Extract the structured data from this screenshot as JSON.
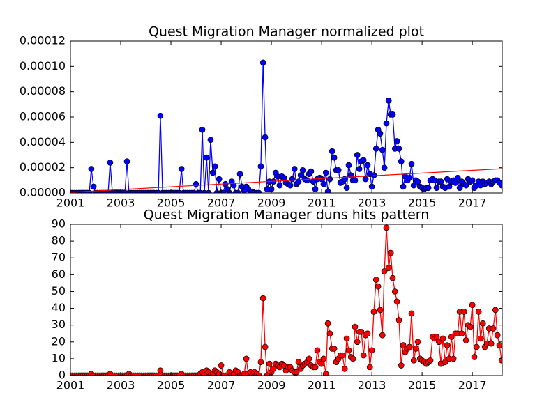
{
  "chart_data": [
    {
      "type": "line",
      "title": "Quest Migration Manager normalized plot",
      "x": [
        2001.0,
        2001.08,
        2001.17,
        2001.25,
        2001.33,
        2001.42,
        2001.5,
        2001.58,
        2001.67,
        2001.75,
        2001.83,
        2001.92,
        2002.0,
        2002.08,
        2002.17,
        2002.25,
        2002.33,
        2002.42,
        2002.5,
        2002.58,
        2002.67,
        2002.75,
        2002.83,
        2002.92,
        2003.0,
        2003.08,
        2003.17,
        2003.25,
        2003.33,
        2003.42,
        2003.5,
        2003.58,
        2003.67,
        2003.75,
        2003.83,
        2003.92,
        2004.0,
        2004.08,
        2004.17,
        2004.25,
        2004.33,
        2004.42,
        2004.5,
        2004.58,
        2004.67,
        2004.75,
        2004.83,
        2004.92,
        2005.0,
        2005.08,
        2005.17,
        2005.25,
        2005.33,
        2005.42,
        2005.5,
        2005.58,
        2005.67,
        2005.75,
        2005.83,
        2005.92,
        2006.0,
        2006.08,
        2006.17,
        2006.25,
        2006.33,
        2006.42,
        2006.5,
        2006.58,
        2006.67,
        2006.75,
        2006.83,
        2006.92,
        2007.0,
        2007.08,
        2007.17,
        2007.25,
        2007.33,
        2007.42,
        2007.5,
        2007.58,
        2007.67,
        2007.75,
        2007.83,
        2007.92,
        2008.0,
        2008.08,
        2008.17,
        2008.25,
        2008.33,
        2008.42,
        2008.5,
        2008.58,
        2008.67,
        2008.75,
        2008.83,
        2008.92,
        2009.0,
        2009.08,
        2009.17,
        2009.25,
        2009.33,
        2009.42,
        2009.5,
        2009.58,
        2009.67,
        2009.75,
        2009.83,
        2009.92,
        2010.0,
        2010.08,
        2010.17,
        2010.25,
        2010.33,
        2010.42,
        2010.5,
        2010.58,
        2010.67,
        2010.75,
        2010.83,
        2010.92,
        2011.0,
        2011.08,
        2011.17,
        2011.25,
        2011.33,
        2011.42,
        2011.5,
        2011.58,
        2011.67,
        2011.75,
        2011.83,
        2011.92,
        2012.0,
        2012.08,
        2012.17,
        2012.25,
        2012.33,
        2012.42,
        2012.5,
        2012.58,
        2012.67,
        2012.75,
        2012.83,
        2012.92,
        2013.0,
        2013.08,
        2013.17,
        2013.25,
        2013.33,
        2013.42,
        2013.5,
        2013.58,
        2013.67,
        2013.75,
        2013.83,
        2013.92,
        2014.0,
        2014.08,
        2014.17,
        2014.25,
        2014.33,
        2014.42,
        2014.5,
        2014.58,
        2014.67,
        2014.75,
        2014.83,
        2014.92,
        2015.0,
        2015.08,
        2015.17,
        2015.25,
        2015.33,
        2015.42,
        2015.5,
        2015.58,
        2015.67,
        2015.75,
        2015.83,
        2015.92,
        2016.0,
        2016.08,
        2016.17,
        2016.25,
        2016.33,
        2016.42,
        2016.5,
        2016.58,
        2016.67,
        2016.75,
        2016.83,
        2016.92,
        2017.0,
        2017.08,
        2017.17,
        2017.25,
        2017.33,
        2017.42,
        2017.5,
        2017.58,
        2017.67,
        2017.75,
        2017.83,
        2017.92,
        2018.0,
        2018.08,
        2018.17
      ],
      "series": [
        {
          "color": "#0000ff",
          "values": [
            0,
            0,
            0,
            0,
            0,
            0,
            0,
            0,
            0,
            0,
            1.9e-05,
            5e-06,
            0,
            0,
            0,
            0,
            0,
            0,
            0,
            2.4e-05,
            0,
            0,
            0,
            0,
            0,
            0,
            0,
            2.5e-05,
            0,
            0,
            0,
            0,
            0,
            0,
            0,
            0,
            0,
            0,
            0,
            0,
            0,
            0,
            0,
            6.1e-05,
            0,
            0,
            0,
            0,
            0,
            0,
            0,
            0,
            0,
            1.9e-05,
            0,
            0,
            0,
            0,
            0,
            0,
            7e-06,
            0,
            0,
            5e-05,
            0,
            2.8e-05,
            0,
            4.2e-05,
            1.6e-05,
            2.1e-05,
            0,
            1.1e-05,
            0,
            0,
            7e-06,
            3e-06,
            0,
            9e-06,
            6e-06,
            0,
            0,
            1.5e-05,
            5e-06,
            2e-06,
            5e-06,
            3e-06,
            0,
            1e-06,
            0,
            0,
            0,
            2.1e-05,
            0.000103,
            4.4e-05,
            3e-06,
            9e-06,
            3e-06,
            9e-06,
            1.6e-05,
            1.3e-05,
            6e-06,
            1.3e-05,
            1.2e-05,
            8e-06,
            7e-06,
            6e-06,
            1.1e-05,
            1.9e-05,
            7e-06,
            9e-06,
            1.4e-05,
            1.8e-05,
            1.1e-05,
            1e-05,
            1.5e-05,
            1.7e-05,
            9e-06,
            3e-06,
            1.1e-05,
            1.2e-05,
            1.1e-05,
            7e-06,
            1.6e-05,
            1e-06,
            1.1e-05,
            3.3e-05,
            2.8e-05,
            1.8e-05,
            1.8e-05,
            8e-06,
            9e-06,
            1.1e-05,
            4e-06,
            2.2e-05,
            1.4e-05,
            1e-05,
            1e-05,
            3e-05,
            1.9e-05,
            2.5e-05,
            2.6e-05,
            1.1e-05,
            2.2e-05,
            1.5e-05,
            5e-06,
            1.4e-05,
            3.5e-05,
            5e-05,
            4.7e-05,
            3.4e-05,
            2e-05,
            5.5e-05,
            7.3e-05,
            6.2e-05,
            6.2e-05,
            3.5e-05,
            4.1e-05,
            3.5e-05,
            2.5e-05,
            5e-06,
            1.3e-05,
            1e-05,
            1.2e-05,
            2.3e-05,
            6e-06,
            1e-05,
            9e-06,
            5e-06,
            4e-06,
            3e-06,
            4e-06,
            4e-06,
            1e-05,
            1.1e-05,
            1e-05,
            4e-06,
            9e-06,
            9e-06,
            5e-06,
            4e-06,
            1.1e-05,
            5e-06,
            9e-06,
            1e-05,
            8e-06,
            1.2e-05,
            4e-06,
            9e-06,
            7e-06,
            6e-06,
            1.1e-05,
            9e-06,
            1e-05,
            4e-06,
            6e-06,
            9e-06,
            6e-06,
            9e-06,
            7e-06,
            8e-06,
            9e-06,
            7e-06,
            9e-06,
            1e-05,
            1e-05,
            8e-06,
            6e-06
          ]
        }
      ],
      "trend": {
        "color": "#ff0000",
        "x": [
          2001.0,
          2018.19
        ],
        "values": [
          5e-07,
          1.92e-05
        ]
      },
      "xlim": [
        2001.0,
        2018.19
      ],
      "xticks": [
        2001,
        2003,
        2005,
        2007,
        2009,
        2011,
        2013,
        2015,
        2017
      ],
      "ylim": [
        0,
        0.00012
      ],
      "yticks": [
        {
          "value": 0,
          "label": "0.00000"
        },
        {
          "value": 2e-05,
          "label": "0.00002"
        },
        {
          "value": 4e-05,
          "label": "0.00004"
        },
        {
          "value": 6e-05,
          "label": "0.00006"
        },
        {
          "value": 8e-05,
          "label": "0.00008"
        },
        {
          "value": 0.0001,
          "label": "0.00010"
        },
        {
          "value": 0.00012,
          "label": "0.00012"
        }
      ]
    },
    {
      "type": "line",
      "title": "Quest Migration Manager duns hits pattern",
      "x": [
        2001.0,
        2001.08,
        2001.17,
        2001.25,
        2001.33,
        2001.42,
        2001.5,
        2001.58,
        2001.67,
        2001.75,
        2001.83,
        2001.92,
        2002.0,
        2002.08,
        2002.17,
        2002.25,
        2002.33,
        2002.42,
        2002.5,
        2002.58,
        2002.67,
        2002.75,
        2002.83,
        2002.92,
        2003.0,
        2003.08,
        2003.17,
        2003.25,
        2003.33,
        2003.42,
        2003.5,
        2003.58,
        2003.67,
        2003.75,
        2003.83,
        2003.92,
        2004.0,
        2004.08,
        2004.17,
        2004.25,
        2004.33,
        2004.42,
        2004.5,
        2004.58,
        2004.67,
        2004.75,
        2004.83,
        2004.92,
        2005.0,
        2005.08,
        2005.17,
        2005.25,
        2005.33,
        2005.42,
        2005.5,
        2005.58,
        2005.67,
        2005.75,
        2005.83,
        2005.92,
        2006.0,
        2006.08,
        2006.17,
        2006.25,
        2006.33,
        2006.42,
        2006.5,
        2006.58,
        2006.67,
        2006.75,
        2006.83,
        2006.92,
        2007.0,
        2007.08,
        2007.17,
        2007.25,
        2007.33,
        2007.42,
        2007.5,
        2007.58,
        2007.67,
        2007.75,
        2007.83,
        2007.92,
        2008.0,
        2008.08,
        2008.17,
        2008.25,
        2008.33,
        2008.42,
        2008.5,
        2008.58,
        2008.67,
        2008.75,
        2008.83,
        2008.92,
        2009.0,
        2009.08,
        2009.17,
        2009.25,
        2009.33,
        2009.42,
        2009.5,
        2009.58,
        2009.67,
        2009.75,
        2009.83,
        2009.92,
        2010.0,
        2010.08,
        2010.17,
        2010.25,
        2010.33,
        2010.42,
        2010.5,
        2010.58,
        2010.67,
        2010.75,
        2010.83,
        2010.92,
        2011.0,
        2011.08,
        2011.17,
        2011.25,
        2011.33,
        2011.42,
        2011.5,
        2011.58,
        2011.67,
        2011.75,
        2011.83,
        2011.92,
        2012.0,
        2012.08,
        2012.17,
        2012.25,
        2012.33,
        2012.42,
        2012.5,
        2012.58,
        2012.67,
        2012.75,
        2012.83,
        2012.92,
        2013.0,
        2013.08,
        2013.17,
        2013.25,
        2013.33,
        2013.42,
        2013.5,
        2013.58,
        2013.67,
        2013.75,
        2013.83,
        2013.92,
        2014.0,
        2014.08,
        2014.17,
        2014.25,
        2014.33,
        2014.42,
        2014.5,
        2014.58,
        2014.67,
        2014.75,
        2014.83,
        2014.92,
        2015.0,
        2015.08,
        2015.17,
        2015.25,
        2015.33,
        2015.42,
        2015.5,
        2015.58,
        2015.67,
        2015.75,
        2015.83,
        2015.92,
        2016.0,
        2016.08,
        2016.17,
        2016.25,
        2016.33,
        2016.42,
        2016.5,
        2016.58,
        2016.67,
        2016.75,
        2016.83,
        2016.92,
        2017.0,
        2017.08,
        2017.17,
        2017.25,
        2017.33,
        2017.42,
        2017.5,
        2017.58,
        2017.67,
        2017.75,
        2017.83,
        2017.92,
        2018.0,
        2018.08,
        2018.17
      ],
      "series": [
        {
          "color": "#ff0000",
          "values": [
            0,
            0,
            0,
            0,
            0,
            0,
            0,
            0,
            0,
            0,
            1,
            0,
            0,
            0,
            0,
            0,
            0,
            0,
            0,
            1,
            0,
            0,
            0,
            0,
            0,
            0,
            0,
            0,
            1,
            0,
            0,
            0,
            0,
            0,
            0,
            0,
            0,
            0,
            0,
            0,
            0,
            0,
            0,
            3,
            0,
            0,
            0,
            0,
            0,
            0,
            0,
            0,
            0,
            1,
            0,
            0,
            0,
            0,
            0,
            0,
            0,
            0,
            1,
            2,
            0,
            3,
            2,
            0,
            1,
            3,
            2,
            1,
            6,
            0,
            0,
            0,
            2,
            0,
            1,
            3,
            2,
            0,
            0,
            1,
            10,
            1,
            2,
            0,
            2,
            1,
            0,
            8,
            46,
            17,
            0,
            7,
            2,
            4,
            7,
            6,
            5,
            7,
            6,
            3,
            5,
            5,
            3,
            2,
            2,
            8,
            4,
            6,
            7,
            8,
            10,
            6,
            5,
            5,
            15,
            8,
            7,
            10,
            1,
            31,
            25,
            16,
            16,
            8,
            10,
            12,
            12,
            4,
            22,
            15,
            11,
            10,
            29,
            20,
            26,
            26,
            12,
            24,
            25,
            5,
            15,
            38,
            57,
            53,
            39,
            24,
            62,
            88,
            64,
            73,
            58,
            50,
            44,
            33,
            6,
            18,
            14,
            16,
            17,
            37,
            9,
            16,
            20,
            10,
            9,
            8,
            7,
            8,
            9,
            23,
            22,
            23,
            20,
            7,
            22,
            8,
            18,
            10,
            23,
            10,
            25,
            25,
            38,
            25,
            38,
            21,
            30,
            29,
            42,
            11,
            17,
            38,
            22,
            31,
            17,
            19,
            28,
            19,
            28,
            39,
            24,
            18,
            9
          ]
        }
      ],
      "xlim": [
        2001.0,
        2018.19
      ],
      "xticks": [
        2001,
        2003,
        2005,
        2007,
        2009,
        2011,
        2013,
        2015,
        2017
      ],
      "ylim": [
        0,
        90
      ],
      "yticks": [
        0,
        10,
        20,
        30,
        40,
        50,
        60,
        70,
        80,
        90
      ]
    }
  ]
}
